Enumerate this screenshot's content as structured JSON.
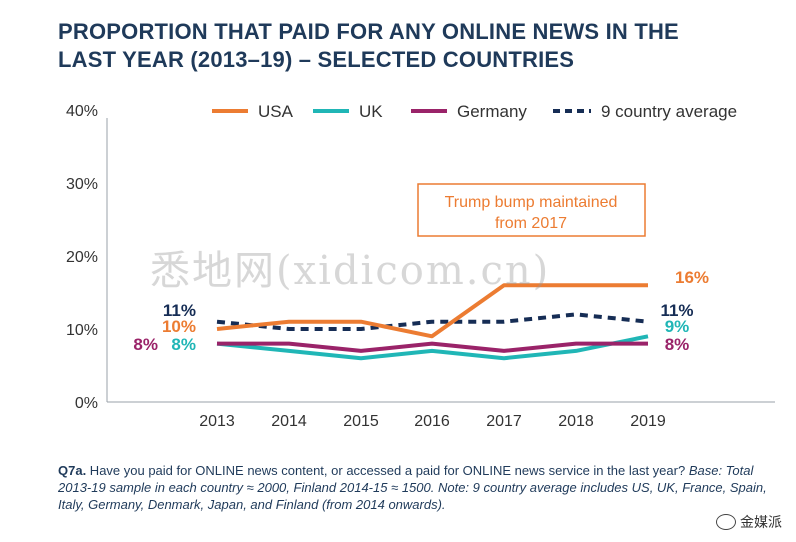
{
  "title_line1": "PROPORTION THAT PAID FOR ANY ONLINE NEWS IN THE",
  "title_line2": "LAST YEAR (2013–19) – SELECTED COUNTRIES",
  "chart_data": {
    "type": "line",
    "x": [
      "2013",
      "2014",
      "2015",
      "2016",
      "2017",
      "2018",
      "2019"
    ],
    "y_ticks": [
      "0%",
      "10%",
      "20%",
      "30%",
      "40%"
    ],
    "ylim": [
      0,
      40
    ],
    "legend_position": "top",
    "series": [
      {
        "name": "USA",
        "color": "#ec7c32",
        "style": "solid",
        "values": [
          10,
          11,
          11,
          9,
          16,
          16,
          16
        ]
      },
      {
        "name": "UK",
        "color": "#20b6b6",
        "style": "solid",
        "values": [
          8,
          7,
          6,
          7,
          6,
          7,
          9
        ]
      },
      {
        "name": "Germany",
        "color": "#9a2369",
        "style": "solid",
        "values": [
          8,
          8,
          7,
          8,
          7,
          8,
          8
        ]
      },
      {
        "name": "9 country average",
        "color": "#162d55",
        "style": "dashed",
        "values": [
          11,
          10,
          10,
          11,
          11,
          12,
          11
        ]
      }
    ],
    "start_labels": [
      {
        "text": "11%",
        "color": "#162d55"
      },
      {
        "text": "10%",
        "color": "#ec7c32"
      },
      {
        "text": "8%",
        "color": "#9a2369"
      },
      {
        "text": "8%",
        "color": "#20b6b6"
      }
    ],
    "end_labels": [
      {
        "text": "16%",
        "color": "#ec7c32"
      },
      {
        "text": "11%",
        "color": "#162d55"
      },
      {
        "text": "9%",
        "color": "#20b6b6"
      },
      {
        "text": "8%",
        "color": "#9a2369"
      }
    ],
    "annotation": {
      "line1": "Trump bump maintained",
      "line2": "from 2017",
      "color": "#ec7c32"
    }
  },
  "note": {
    "q": "Q7a.",
    "text": " Have you paid for ONLINE news content, or accessed a paid for ONLINE news service in the last year? ",
    "italic": "Base: Total 2013-19 sample in each country ≈ 2000, Finland 2014-15 ≈ 1500. Note: 9 country average includes US, UK, France, Spain, Italy, Germany, Denmark, Japan, and Finland (from 2014 onwards)."
  },
  "watermark": "悉地网(xidicom.cn)",
  "badge": "金媒派"
}
